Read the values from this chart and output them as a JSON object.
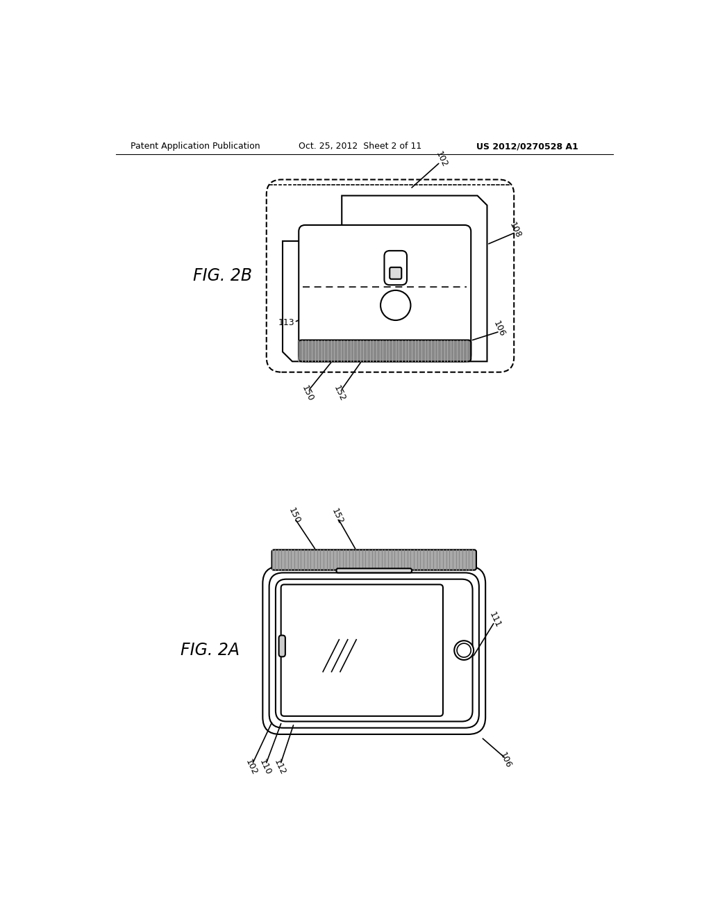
{
  "background_color": "#ffffff",
  "header_left": "Patent Application Publication",
  "header_center": "Oct. 25, 2012  Sheet 2 of 11",
  "header_right": "US 2012/0270528 A1"
}
